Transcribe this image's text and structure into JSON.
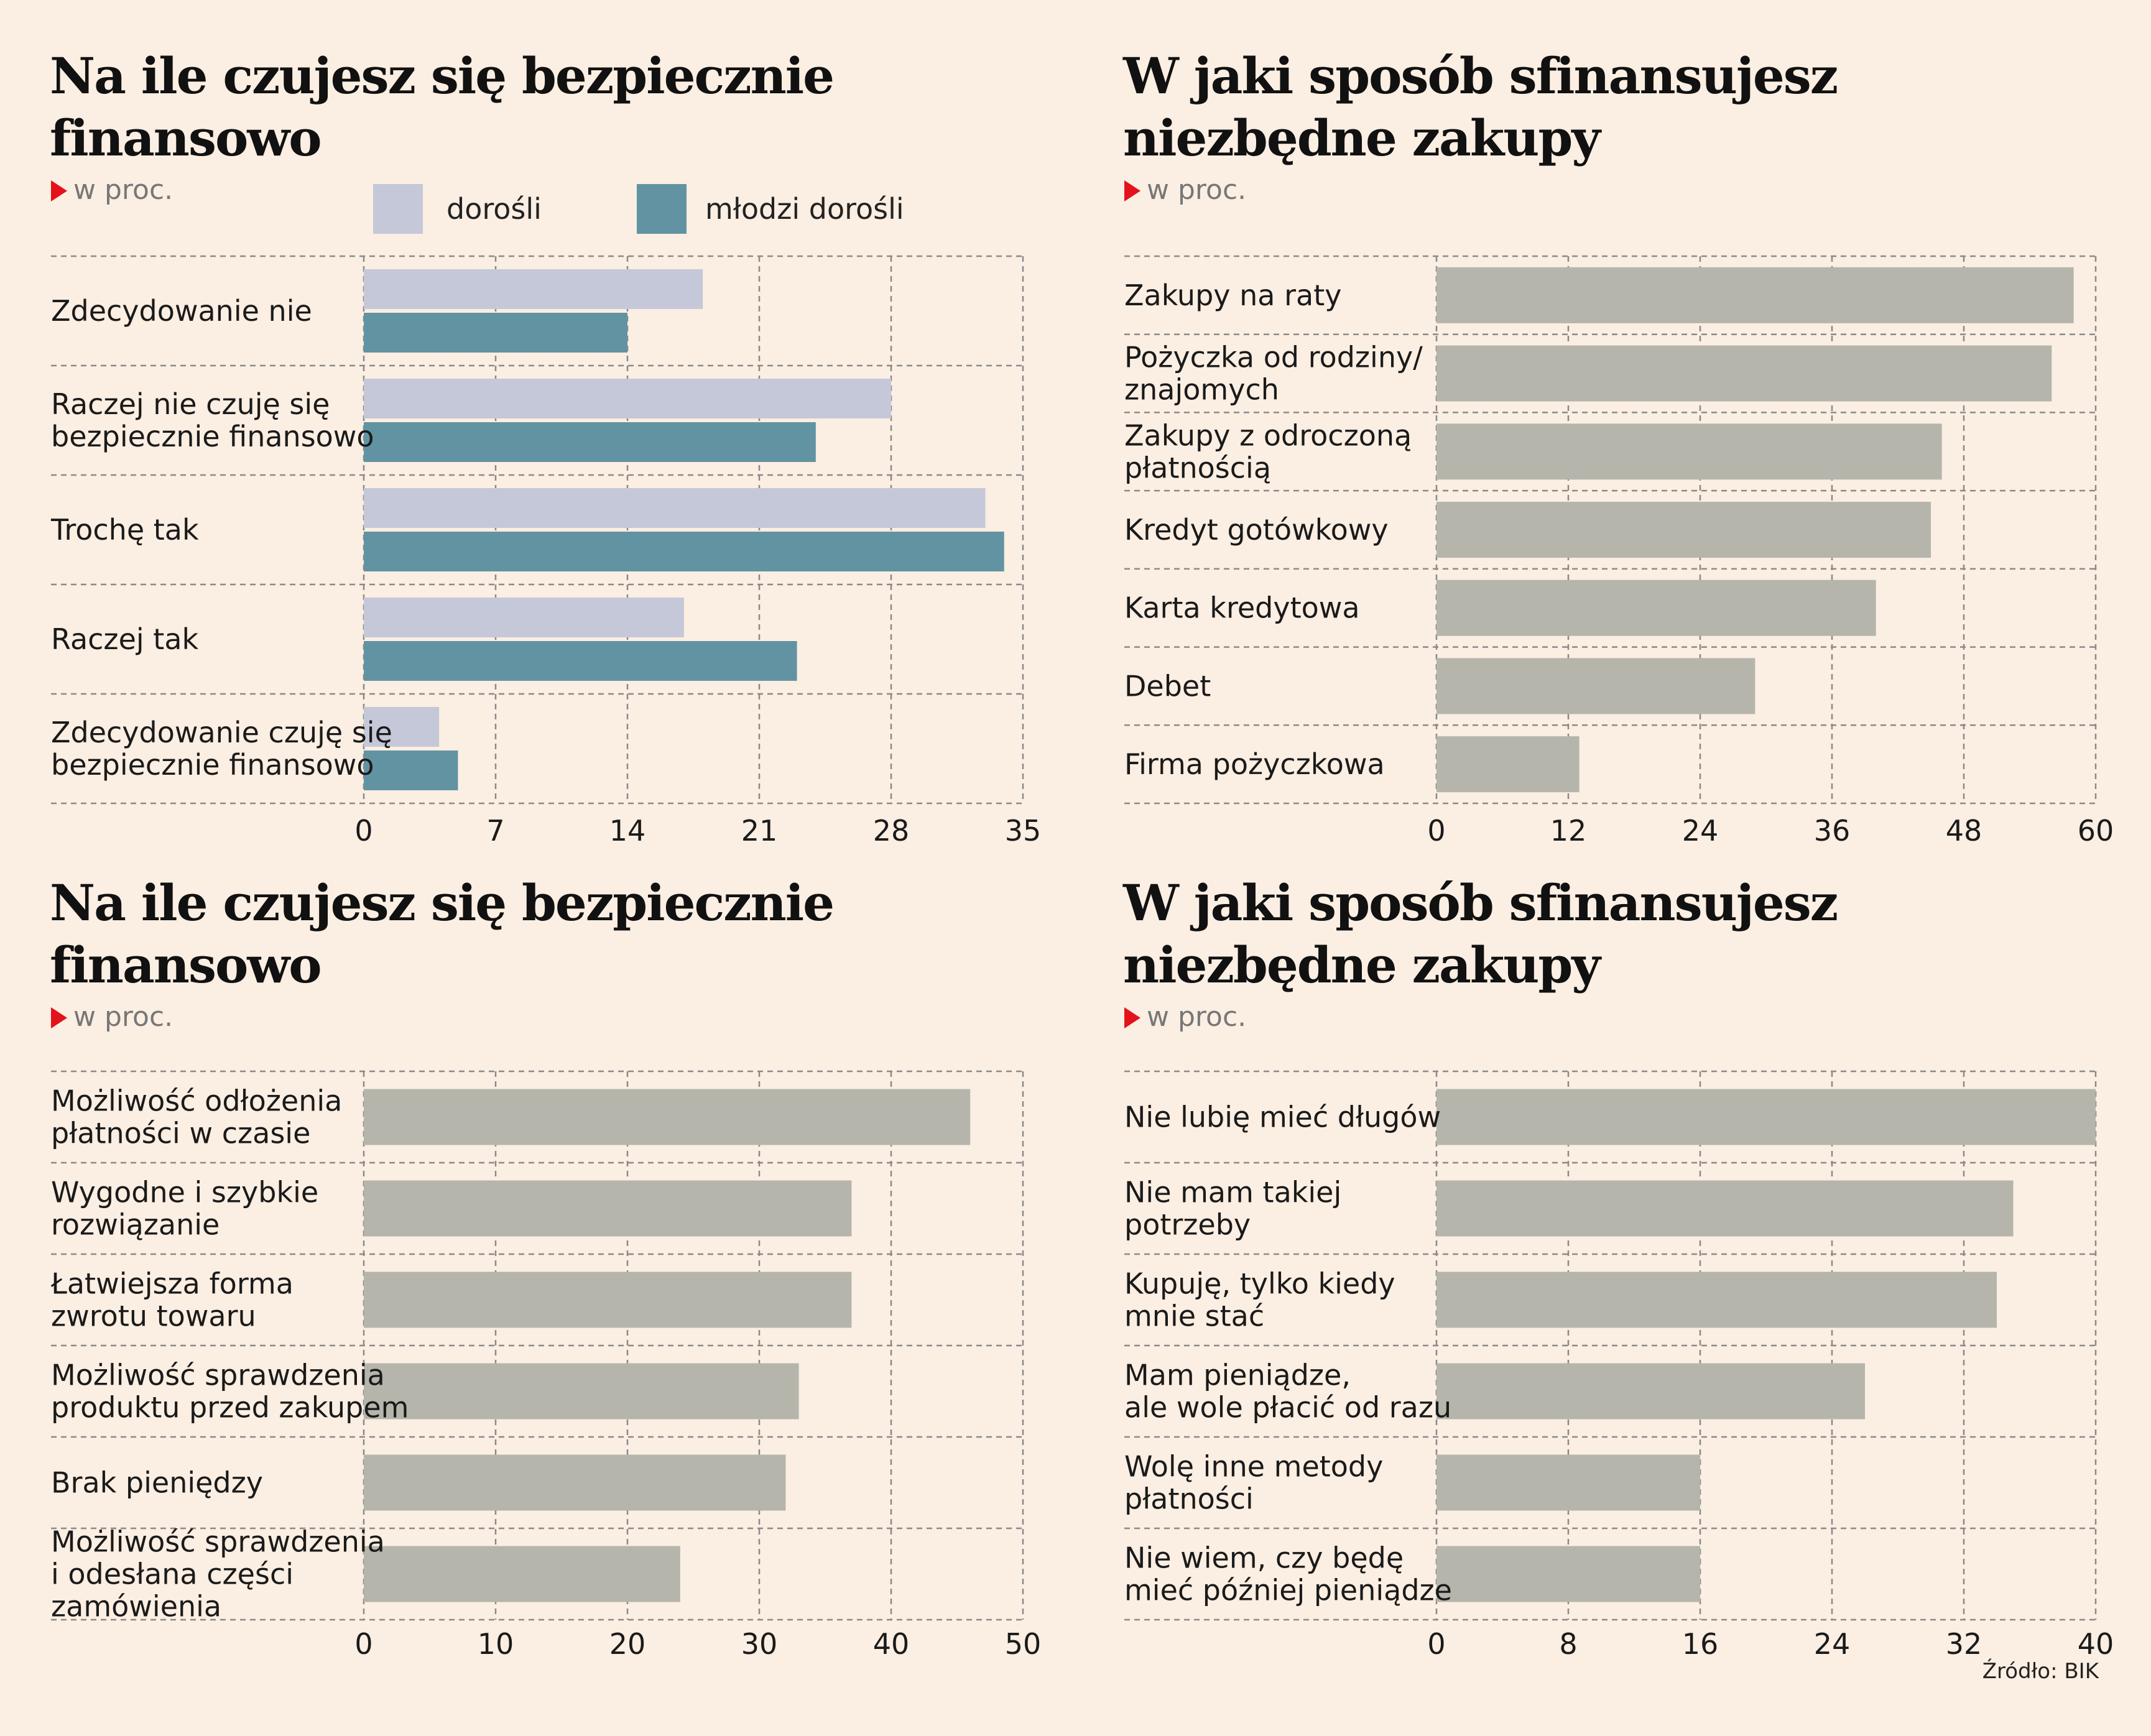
{
  "charts": [
    {
      "title_lines": [
        "Na ile czujesz się bezpiecznie",
        "finansowo"
      ],
      "unit": "w proc.",
      "legend": [
        {
          "label": "dorośli",
          "color": "#c5c8d8"
        },
        {
          "label": "młodzi dorośli",
          "color": "#6293a3"
        }
      ]
    },
    {
      "title_lines": [
        "W jaki sposób sfinansujesz",
        "niezbędne zakupy"
      ],
      "unit": "w proc."
    },
    {
      "title_lines": [
        "Na ile czujesz się bezpiecznie",
        "finansowo"
      ],
      "unit": "w proc."
    },
    {
      "title_lines": [
        "W jaki sposób sfinansujesz",
        "niezbędne zakupy"
      ],
      "unit": "w proc."
    }
  ],
  "source": "Źródło: BIK",
  "colors": {
    "background": "#fbeee2",
    "adults": "#c5c8d8",
    "young_adults": "#6293a3",
    "single_bar": "#b5b5ac",
    "arrow": "#e3121b",
    "grid": "#8a8a8a"
  },
  "chart_data": [
    {
      "type": "bar",
      "orientation": "horizontal",
      "categories": [
        [
          "Zdecydowanie nie"
        ],
        [
          "Raczej nie czuję się",
          "bezpiecznie finansowo"
        ],
        [
          "Trochę tak"
        ],
        [
          "Raczej tak"
        ],
        [
          "Zdecydowanie czuję się",
          "bezpiecznie finansowo"
        ]
      ],
      "series": [
        {
          "name": "dorośli",
          "values": [
            18,
            28,
            33,
            17,
            4
          ]
        },
        {
          "name": "młodzi dorośli",
          "values": [
            14,
            24,
            34,
            23,
            5
          ]
        }
      ],
      "xlim": [
        0,
        35
      ],
      "ticks": [
        0,
        7,
        14,
        21,
        28,
        35
      ],
      "grid": true
    },
    {
      "type": "bar",
      "orientation": "horizontal",
      "categories": [
        [
          "Zakupy na raty"
        ],
        [
          "Pożyczka od rodziny/",
          "znajomych"
        ],
        [
          "Zakupy z odroczoną",
          "płatnością"
        ],
        [
          "Kredyt gotówkowy"
        ],
        [
          "Karta kredytowa"
        ],
        [
          "Debet"
        ],
        [
          "Firma pożyczkowa"
        ]
      ],
      "series": [
        {
          "values": [
            58,
            56,
            46,
            45,
            40,
            29,
            13
          ]
        }
      ],
      "xlim": [
        0,
        60
      ],
      "ticks": [
        0,
        12,
        24,
        36,
        48,
        60
      ],
      "grid": true
    },
    {
      "type": "bar",
      "orientation": "horizontal",
      "categories": [
        [
          "Możliwość odłożenia",
          "płatności w czasie"
        ],
        [
          "Wygodne i szybkie",
          "rozwiązanie"
        ],
        [
          "Łatwiejsza forma",
          "zwrotu towaru"
        ],
        [
          "Możliwość sprawdzenia",
          "produktu przed zakupem"
        ],
        [
          "Brak pieniędzy"
        ],
        [
          "Możliwość sprawdzenia",
          "i odesłana części",
          "zamówienia"
        ]
      ],
      "series": [
        {
          "values": [
            46,
            37,
            37,
            33,
            32,
            24
          ]
        }
      ],
      "xlim": [
        0,
        50
      ],
      "ticks": [
        0,
        10,
        20,
        30,
        40,
        50
      ],
      "grid": true
    },
    {
      "type": "bar",
      "orientation": "horizontal",
      "categories": [
        [
          "Nie lubię mieć długów"
        ],
        [
          "Nie mam takiej",
          "potrzeby"
        ],
        [
          "Kupuję, tylko kiedy",
          "mnie stać"
        ],
        [
          "Mam pieniądze,",
          "ale wole płacić od razu"
        ],
        [
          "Wolę inne metody",
          "płatności"
        ],
        [
          "Nie wiem, czy będę",
          "mieć później pieniądze"
        ]
      ],
      "series": [
        {
          "values": [
            40,
            35,
            34,
            26,
            16,
            16
          ]
        }
      ],
      "xlim": [
        0,
        40
      ],
      "ticks": [
        0,
        8,
        16,
        24,
        32,
        40
      ],
      "grid": true
    }
  ]
}
